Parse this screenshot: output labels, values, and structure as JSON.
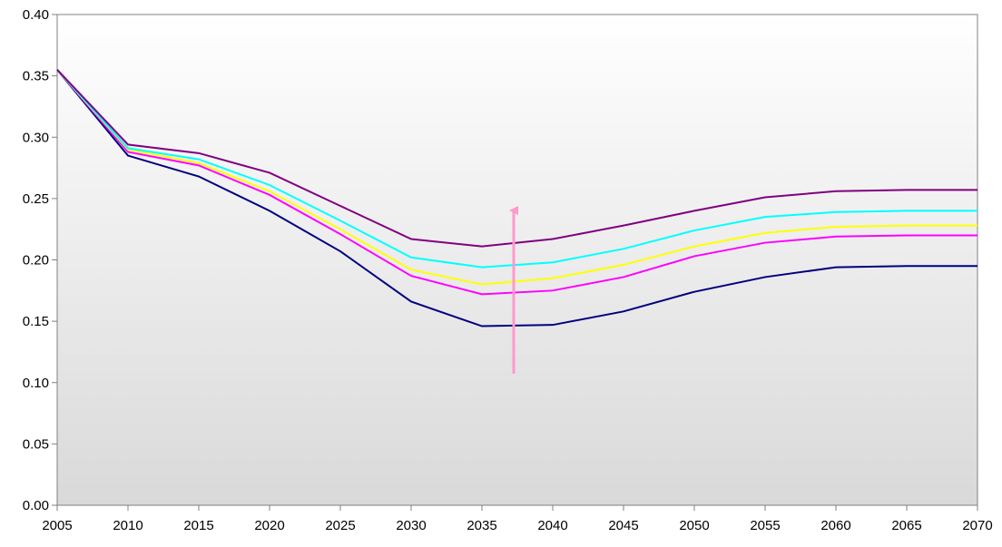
{
  "chart_data": {
    "type": "line",
    "x": [
      2005,
      2010,
      2015,
      2020,
      2025,
      2030,
      2035,
      2040,
      2045,
      2050,
      2055,
      2060,
      2065,
      2070
    ],
    "xlim": [
      2005,
      2070
    ],
    "xticks": [
      2005,
      2010,
      2015,
      2020,
      2025,
      2030,
      2035,
      2040,
      2045,
      2050,
      2055,
      2060,
      2065,
      2070
    ],
    "ylim": [
      0,
      0.4
    ],
    "yticks": [
      {
        "value": 0,
        "label": "0.00"
      },
      {
        "value": 0.05,
        "label": "0.05"
      },
      {
        "value": 0.1,
        "label": "0.10"
      },
      {
        "value": 0.15,
        "label": "0.15"
      },
      {
        "value": 0.2,
        "label": "0.20"
      },
      {
        "value": 0.25,
        "label": "0.25"
      },
      {
        "value": 0.3,
        "label": "0.30"
      },
      {
        "value": 0.35,
        "label": "0.35"
      },
      {
        "value": 0.4,
        "label": "0.40"
      }
    ],
    "grid": false,
    "series": [
      {
        "color": "#000080",
        "values": [
          0.355,
          0.285,
          0.268,
          0.24,
          0.207,
          0.166,
          0.146,
          0.147,
          0.158,
          0.174,
          0.186,
          0.194,
          0.195,
          0.195
        ]
      },
      {
        "color": "#ff00ff",
        "values": [
          0.355,
          0.288,
          0.277,
          0.253,
          0.221,
          0.187,
          0.172,
          0.175,
          0.186,
          0.203,
          0.214,
          0.219,
          0.22,
          0.22
        ]
      },
      {
        "color": "#ffff00",
        "values": [
          0.355,
          0.29,
          0.279,
          0.256,
          0.225,
          0.192,
          0.18,
          0.185,
          0.196,
          0.211,
          0.222,
          0.227,
          0.228,
          0.228
        ]
      },
      {
        "color": "#00ffff",
        "values": [
          0.355,
          0.291,
          0.282,
          0.261,
          0.232,
          0.202,
          0.194,
          0.198,
          0.209,
          0.224,
          0.235,
          0.239,
          0.24,
          0.24
        ]
      },
      {
        "color": "#800080",
        "values": [
          0.355,
          0.294,
          0.287,
          0.271,
          0.244,
          0.217,
          0.211,
          0.217,
          0.228,
          0.24,
          0.251,
          0.256,
          0.257,
          0.257
        ]
      }
    ]
  }
}
